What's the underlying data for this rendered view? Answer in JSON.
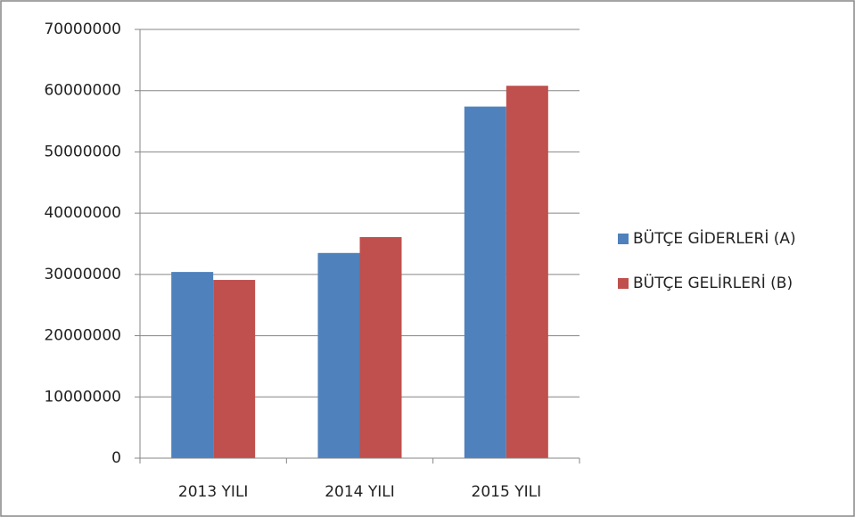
{
  "chart_data": {
    "type": "bar",
    "categories": [
      "2013 YILI",
      "2014 YILI",
      "2015 YILI"
    ],
    "series": [
      {
        "name": "BÜTÇE GİDERLERİ (A)",
        "color": "#4f81bd",
        "values": [
          30400000,
          33500000,
          57400000
        ]
      },
      {
        "name": "BÜTÇE GELİRLERİ (B)",
        "color": "#c0504d",
        "values": [
          29100000,
          36100000,
          60800000
        ]
      }
    ],
    "ylim": [
      0,
      70000000
    ],
    "yticks": [
      0,
      10000000,
      20000000,
      30000000,
      40000000,
      50000000,
      60000000,
      70000000
    ],
    "grid": true,
    "legend": "right"
  }
}
